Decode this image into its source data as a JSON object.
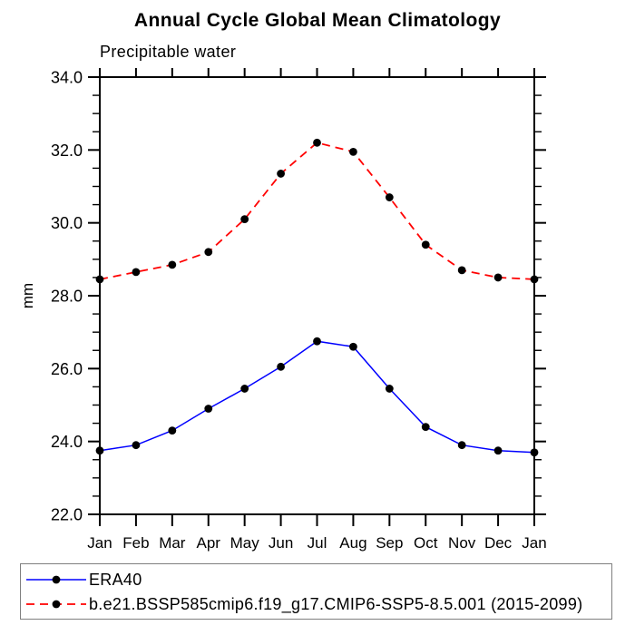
{
  "chart_data": {
    "type": "line",
    "title": "Annual Cycle Global Mean Climatology",
    "subtitle": "Precipitable water",
    "ylabel": "mm",
    "xlabel": "",
    "categories": [
      "Jan",
      "Feb",
      "Mar",
      "Apr",
      "May",
      "Jun",
      "Jul",
      "Aug",
      "Sep",
      "Oct",
      "Nov",
      "Dec",
      "Jan"
    ],
    "ylim": [
      22.0,
      34.0
    ],
    "ytick_major_step": 2.0,
    "ytick_minor_step": 0.5,
    "ytick_labels": [
      "22.0",
      "24.0",
      "26.0",
      "28.0",
      "30.0",
      "32.0",
      "34.0"
    ],
    "grid": false,
    "legend_position": "bottom-box",
    "series": [
      {
        "name": "ERA40",
        "color": "#0000ff",
        "line_style": "solid",
        "marker": "filled-circle",
        "marker_color": "#000000",
        "values": [
          23.75,
          23.9,
          24.3,
          24.9,
          25.45,
          26.05,
          26.75,
          26.6,
          25.45,
          24.4,
          23.9,
          23.75,
          23.7
        ]
      },
      {
        "name": "b.e21.BSSP585cmip6.f19_g17.CMIP6-SSP5-8.5.001 (2015-2099)",
        "color": "#ff0000",
        "line_style": "dashed",
        "marker": "filled-circle",
        "marker_color": "#000000",
        "values": [
          28.45,
          28.65,
          28.85,
          29.2,
          30.1,
          31.35,
          32.2,
          31.95,
          30.7,
          29.4,
          28.7,
          28.5,
          28.45
        ]
      }
    ]
  }
}
